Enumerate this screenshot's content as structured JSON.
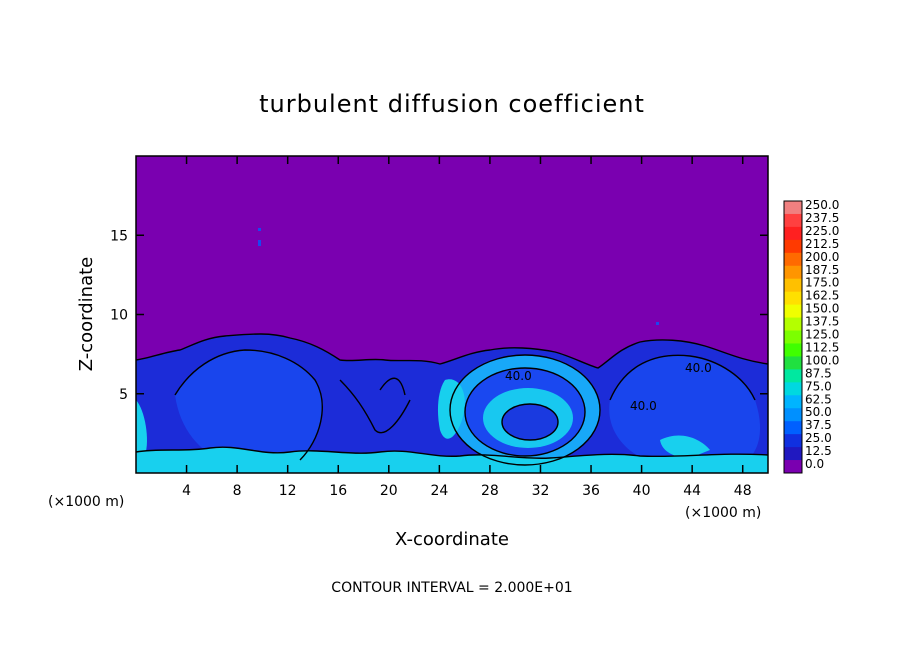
{
  "chart_data": {
    "type": "heatmap",
    "title": "turbulent diffusion coefficient",
    "xlabel": "X-coordinate",
    "ylabel": "Z-coordinate",
    "x_unit": "(×1000 m)",
    "y_unit": "(×1000 m)",
    "xlim": [
      0,
      50
    ],
    "ylim": [
      0,
      20
    ],
    "x_ticks": [
      4,
      8,
      12,
      16,
      20,
      24,
      28,
      32,
      36,
      40,
      44,
      48
    ],
    "y_ticks": [
      5,
      10,
      15
    ],
    "colorbar": {
      "levels": [
        "250.0",
        "237.5",
        "225.0",
        "212.5",
        "200.0",
        "187.5",
        "175.0",
        "162.5",
        "150.0",
        "137.5",
        "125.0",
        "112.5",
        "100.0",
        "87.5",
        "75.0",
        "62.5",
        "50.0",
        "37.5",
        "25.0",
        "12.5",
        "0.0"
      ],
      "colors": [
        "#f08080",
        "#ff4040",
        "#ff2020",
        "#ff3a00",
        "#ff6a00",
        "#ff9500",
        "#ffc000",
        "#ffe000",
        "#f0ff00",
        "#b4ff00",
        "#7cff00",
        "#40ff00",
        "#20e040",
        "#00e8a0",
        "#00d8e0",
        "#00b4ff",
        "#0090ff",
        "#0060ff",
        "#1030e0",
        "#2018c0",
        "#7a00b0"
      ]
    },
    "contour_labels": [
      "40.0",
      "40.0",
      "40.0"
    ],
    "background_value": 0.0,
    "grid": false
  },
  "footer": {
    "contour_interval": "CONTOUR INTERVAL = 2.000E+01"
  }
}
